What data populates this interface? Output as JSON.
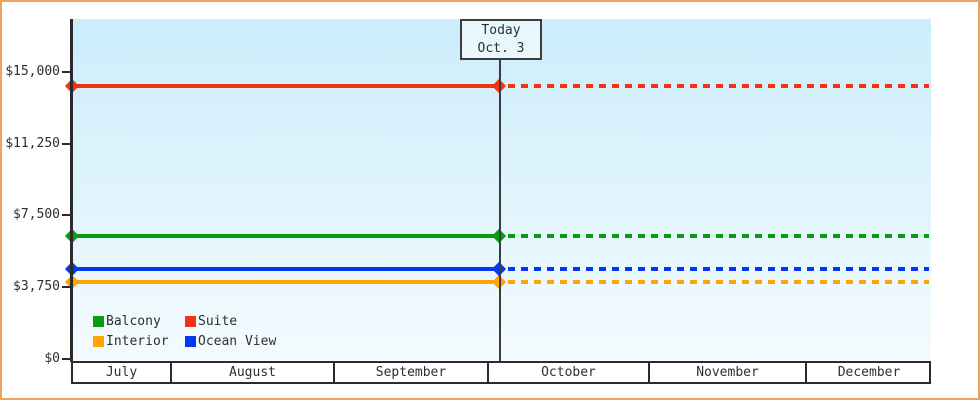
{
  "frame": {
    "border_color": "#eba55e"
  },
  "chart_data": {
    "type": "line",
    "title": "",
    "xlabel": "",
    "ylabel": "",
    "months": [
      "July",
      "August",
      "September",
      "October",
      "November",
      "December"
    ],
    "y_axis": {
      "ticks": [
        {
          "label": "$15,000",
          "value": 15000
        },
        {
          "label": "$11,250",
          "value": 11250
        },
        {
          "label": "$7,500",
          "value": 7500
        },
        {
          "label": "$3,750",
          "value": 3750
        },
        {
          "label": "$0",
          "value": 0
        }
      ],
      "ylim": [
        0,
        17700
      ],
      "grid": false
    },
    "series": [
      {
        "name": "Balcony",
        "color": "#0a9b0f",
        "value": 6400,
        "style": "solid before today, dotted projection after"
      },
      {
        "name": "Suite",
        "color": "#f2330d",
        "value": 14250,
        "style": "solid before today, dotted projection after"
      },
      {
        "name": "Interior",
        "color": "#ffa502",
        "value": 4000,
        "style": "solid before today, dotted projection after"
      },
      {
        "name": "Ocean View",
        "color": "#0239ee",
        "value": 4700,
        "style": "solid before today, dotted projection after"
      }
    ],
    "today": {
      "line1": "Today",
      "line2": "Oct. 3"
    },
    "legend_position": "bottom-left inside plot",
    "legend_rows": [
      [
        "Balcony",
        "Suite"
      ],
      [
        "Interior",
        "Ocean View"
      ]
    ]
  }
}
